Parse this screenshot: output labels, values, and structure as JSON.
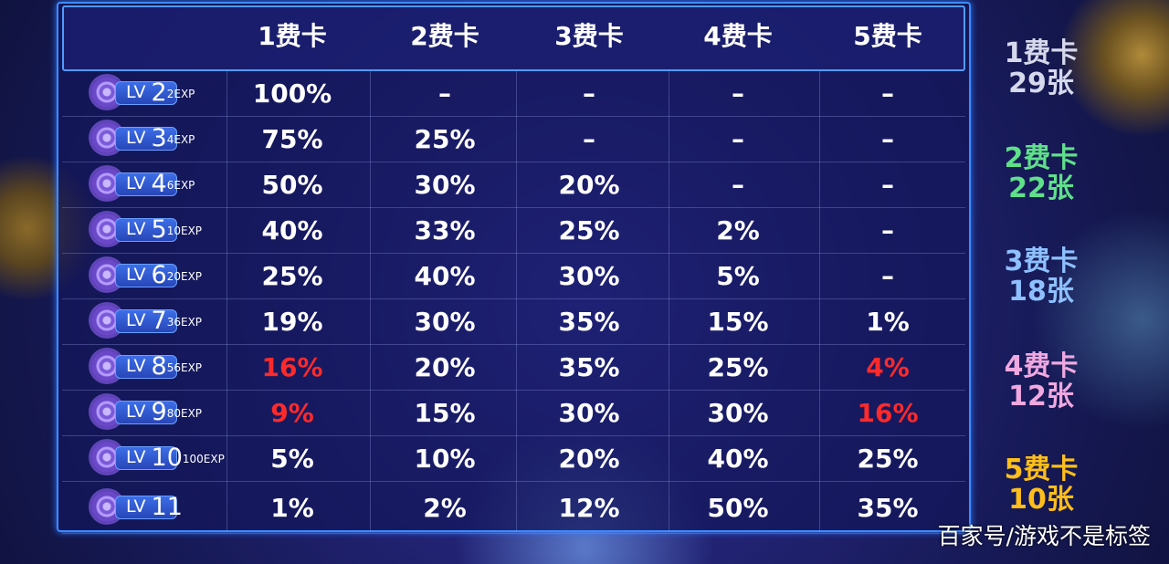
{
  "columns": [
    "1费卡",
    "2费卡",
    "3费卡",
    "4费卡",
    "5费卡"
  ],
  "rows": [
    {
      "level": "LV 2",
      "exp": "2EXP",
      "values": [
        "100%",
        "–",
        "–",
        "–",
        "–"
      ]
    },
    {
      "level": "LV 3",
      "exp": "4EXP",
      "values": [
        "75%",
        "25%",
        "–",
        "–",
        "–"
      ]
    },
    {
      "level": "LV 4",
      "exp": "6EXP",
      "values": [
        "50%",
        "30%",
        "20%",
        "–",
        "–"
      ]
    },
    {
      "level": "LV 5",
      "exp": "10EXP",
      "values": [
        "40%",
        "33%",
        "25%",
        "2%",
        "–"
      ]
    },
    {
      "level": "LV 6",
      "exp": "20EXP",
      "values": [
        "25%",
        "40%",
        "30%",
        "5%",
        "–"
      ]
    },
    {
      "level": "LV 7",
      "exp": "36EXP",
      "values": [
        "19%",
        "30%",
        "35%",
        "15%",
        "1%"
      ]
    },
    {
      "level": "LV 8",
      "exp": "56EXP",
      "values": [
        "16%",
        "20%",
        "35%",
        "25%",
        "4%"
      ],
      "red": [
        0,
        4
      ]
    },
    {
      "level": "LV 9",
      "exp": "80EXP",
      "values": [
        "9%",
        "15%",
        "30%",
        "30%",
        "16%"
      ],
      "red": [
        0,
        4
      ]
    },
    {
      "level": "LV 10",
      "exp": "100EXP",
      "values": [
        "5%",
        "10%",
        "20%",
        "40%",
        "25%"
      ]
    },
    {
      "level": "LV 11",
      "exp": "",
      "values": [
        "1%",
        "2%",
        "12%",
        "50%",
        "35%"
      ]
    }
  ],
  "pool": [
    {
      "cost": "1费卡",
      "count": "29张",
      "color": "#d6d8ec"
    },
    {
      "cost": "2费卡",
      "count": "22张",
      "color": "#5fe08a"
    },
    {
      "cost": "3费卡",
      "count": "18张",
      "color": "#8ec0ff"
    },
    {
      "cost": "4费卡",
      "count": "12张",
      "color": "#f0a8e0"
    },
    {
      "cost": "5费卡",
      "count": "10张",
      "color": "#ffbe1a"
    }
  ],
  "highlight_color": "#ff2a2a",
  "watermark": "百家号/游戏不是标签"
}
